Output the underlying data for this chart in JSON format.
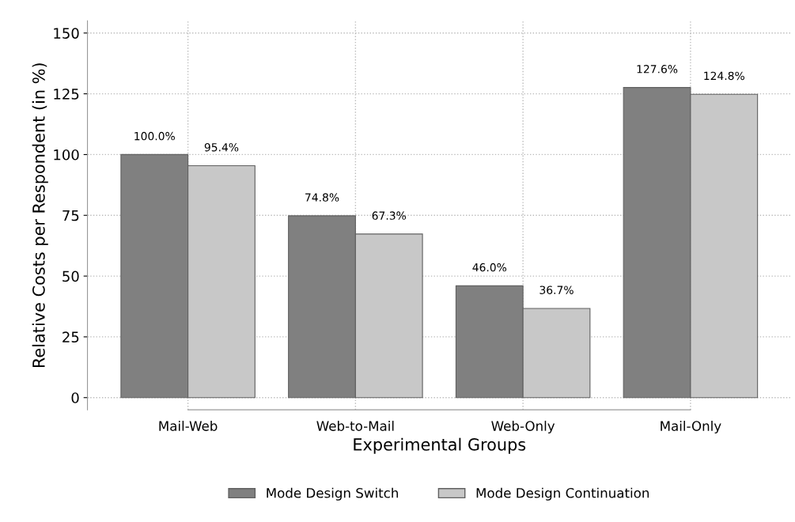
{
  "chart_data": {
    "type": "bar",
    "xlabel": "Experimental Groups",
    "ylabel": "Relative Costs per Respondent (in %)",
    "categories": [
      "Mail-Web",
      "Web-to-Mail",
      "Web-Only",
      "Mail-Only"
    ],
    "series": [
      {
        "name": "Mode Design Switch",
        "color": "#808080",
        "values": [
          100.0,
          74.8,
          46.0,
          127.6
        ],
        "value_labels": [
          "100.0%",
          "74.8%",
          "46.0%",
          "127.6%"
        ]
      },
      {
        "name": "Mode Design Continuation",
        "color": "#c8c8c8",
        "values": [
          95.4,
          67.3,
          36.7,
          124.8
        ],
        "value_labels": [
          "95.4%",
          "67.3%",
          "36.7%",
          "124.8%"
        ]
      }
    ],
    "ylim": [
      -5,
      155
    ],
    "yticks": [
      0,
      25,
      50,
      75,
      100,
      125,
      150
    ],
    "grid": true,
    "legend": "bottom"
  }
}
